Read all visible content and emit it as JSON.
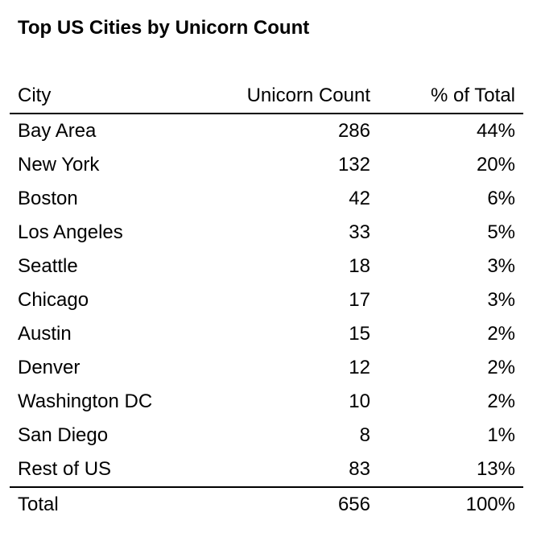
{
  "chart_data": {
    "type": "table",
    "title": "Top US Cities by Unicorn Count",
    "columns": [
      "City",
      "Unicorn Count",
      "% of Total"
    ],
    "rows": [
      {
        "city": "Bay Area",
        "count": "286",
        "pct": "44%"
      },
      {
        "city": "New York",
        "count": "132",
        "pct": "20%"
      },
      {
        "city": "Boston",
        "count": "42",
        "pct": "6%"
      },
      {
        "city": "Los Angeles",
        "count": "33",
        "pct": "5%"
      },
      {
        "city": "Seattle",
        "count": "18",
        "pct": "3%"
      },
      {
        "city": "Chicago",
        "count": "17",
        "pct": "3%"
      },
      {
        "city": "Austin",
        "count": "15",
        "pct": "2%"
      },
      {
        "city": "Denver",
        "count": "12",
        "pct": "2%"
      },
      {
        "city": "Washington DC",
        "count": "10",
        "pct": "2%"
      },
      {
        "city": "San Diego",
        "count": "8",
        "pct": "1%"
      },
      {
        "city": "Rest of US",
        "count": "83",
        "pct": "13%"
      }
    ],
    "total": {
      "city": "Total",
      "count": "656",
      "pct": "100%"
    }
  }
}
